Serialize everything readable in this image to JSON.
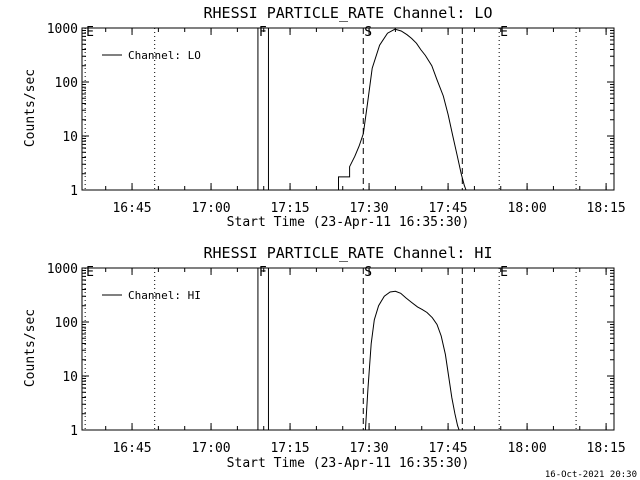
{
  "footer_stamp": "16-Oct-2021 20:30",
  "chart_data": [
    {
      "type": "line",
      "title": "RHESSI PARTICLE_RATE Channel: LO",
      "xlabel": "Start Time (23-Apr-11 16:35:30)",
      "ylabel": "Counts/sec",
      "x_unit": "minutes since 16:35:30",
      "xlim": [
        0,
        101
      ],
      "ylim": [
        1,
        1000
      ],
      "y_scale": "log",
      "x_ticks": [
        "16:45",
        "17:00",
        "17:15",
        "17:30",
        "17:45",
        "18:00",
        "18:15"
      ],
      "x_tick_values": [
        9.5,
        24.5,
        39.5,
        54.5,
        69.5,
        84.5,
        99.5
      ],
      "y_ticks": [
        "1",
        "10",
        "100",
        "1000"
      ],
      "y_tick_values": [
        1,
        10,
        100,
        1000
      ],
      "legend": {
        "label": "Channel: LO",
        "placement": "top-left"
      },
      "markers": [
        {
          "label": "E",
          "x": 0.6,
          "style": "dotted"
        },
        {
          "label": "F",
          "x": 33.4,
          "style": "solid"
        },
        {
          "label": "",
          "x": 35.4,
          "style": "solid"
        },
        {
          "label": "S",
          "x": 53.4,
          "style": "dashed"
        },
        {
          "label": "",
          "x": 72.2,
          "style": "dashed"
        },
        {
          "label": "E",
          "x": 79.2,
          "style": "dotted"
        },
        {
          "label": "",
          "x": 13.8,
          "style": "dotted"
        },
        {
          "label": "",
          "x": 93.8,
          "style": "dotted"
        }
      ],
      "series": [
        {
          "name": "Channel: LO",
          "x": [
            48.7,
            48.7,
            50.8,
            50.8,
            51.8,
            52.6,
            53.4,
            54.2,
            55.1,
            56.5,
            58.0,
            59.4,
            60.6,
            61.7,
            62.6,
            63.5,
            64.3,
            65.2,
            66.4,
            67.4,
            68.6,
            69.5,
            70.4,
            71.2,
            72.0,
            72.6,
            72.9
          ],
          "y": [
            1,
            1.75,
            1.75,
            2.7,
            4.2,
            6.5,
            11,
            40,
            180,
            480,
            800,
            950,
            880,
            750,
            640,
            520,
            400,
            310,
            200,
            110,
            55,
            25,
            10,
            4.5,
            2,
            1.2,
            1
          ]
        }
      ]
    },
    {
      "type": "line",
      "title": "RHESSI PARTICLE_RATE Channel: HI",
      "xlabel": "Start Time (23-Apr-11 16:35:30)",
      "ylabel": "Counts/sec",
      "x_unit": "minutes since 16:35:30",
      "xlim": [
        0,
        101
      ],
      "ylim": [
        1,
        1000
      ],
      "y_scale": "log",
      "x_ticks": [
        "16:45",
        "17:00",
        "17:15",
        "17:30",
        "17:45",
        "18:00",
        "18:15"
      ],
      "x_tick_values": [
        9.5,
        24.5,
        39.5,
        54.5,
        69.5,
        84.5,
        99.5
      ],
      "y_ticks": [
        "1",
        "10",
        "100",
        "1000"
      ],
      "y_tick_values": [
        1,
        10,
        100,
        1000
      ],
      "legend": {
        "label": "Channel: HI",
        "placement": "top-left"
      },
      "markers": [
        {
          "label": "E",
          "x": 0.6,
          "style": "dotted"
        },
        {
          "label": "F",
          "x": 33.4,
          "style": "solid"
        },
        {
          "label": "",
          "x": 35.4,
          "style": "solid"
        },
        {
          "label": "S",
          "x": 53.4,
          "style": "dashed"
        },
        {
          "label": "",
          "x": 72.2,
          "style": "dashed"
        },
        {
          "label": "E",
          "x": 79.2,
          "style": "dotted"
        },
        {
          "label": "",
          "x": 13.8,
          "style": "dotted"
        },
        {
          "label": "",
          "x": 93.8,
          "style": "dotted"
        }
      ],
      "series": [
        {
          "name": "Channel: HI",
          "x": [
            53.8,
            54.3,
            54.9,
            55.5,
            56.3,
            57.4,
            58.5,
            59.5,
            60.5,
            61.5,
            62.6,
            63.7,
            64.6,
            65.5,
            66.5,
            67.4,
            68.2,
            69.0,
            69.6,
            70.2,
            70.8,
            71.3,
            71.6
          ],
          "y": [
            1,
            6,
            40,
            110,
            200,
            300,
            360,
            370,
            340,
            280,
            230,
            190,
            170,
            150,
            120,
            90,
            55,
            25,
            10,
            4,
            2,
            1.2,
            1
          ]
        }
      ]
    }
  ]
}
